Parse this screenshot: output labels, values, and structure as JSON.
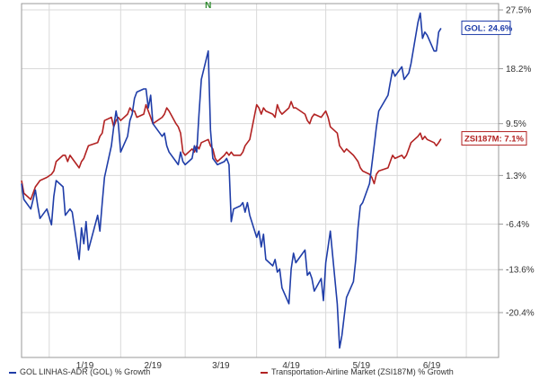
{
  "chart_data": {
    "type": "line",
    "title": "",
    "xlabel": "",
    "ylabel": "",
    "x_tick_labels": [
      "1/19",
      "2/19",
      "3/19",
      "4/19",
      "5/19",
      "6/19"
    ],
    "y_tick_labels": [
      "27.5%",
      "18.2%",
      "9.5%",
      "1.3%",
      "-6.4%",
      "-13.6%",
      "-20.4%"
    ],
    "y_ticks": [
      27.5,
      18.2,
      9.5,
      1.3,
      -6.4,
      -13.6,
      -20.4
    ],
    "ylim": [
      -27.5,
      28.5
    ],
    "grid": true,
    "legend_position": "bottom",
    "top_marker": "N",
    "series": [
      {
        "name": "GOL LINHAS-ADR (GOL) % Growth",
        "color": "#1f3da8",
        "end_label": "GOL: 24.6%",
        "points": [
          [
            "2018-12-20",
            0.0
          ],
          [
            "2018-12-21",
            -2.5
          ],
          [
            "2018-12-24",
            -4.0
          ],
          [
            "2018-12-26",
            -1.0
          ],
          [
            "2018-12-27",
            -3.5
          ],
          [
            "2018-12-28",
            -5.5
          ],
          [
            "2018-12-31",
            -4.0
          ],
          [
            "2019-01-02",
            -6.5
          ],
          [
            "2019-01-03",
            -2.0
          ],
          [
            "2019-01-04",
            0.5
          ],
          [
            "2019-01-07",
            -0.5
          ],
          [
            "2019-01-08",
            -5.0
          ],
          [
            "2019-01-09",
            -4.5
          ],
          [
            "2019-01-10",
            -4.0
          ],
          [
            "2019-01-11",
            -4.5
          ],
          [
            "2019-01-14",
            -12.0
          ],
          [
            "2019-01-15",
            -7.0
          ],
          [
            "2019-01-16",
            -9.5
          ],
          [
            "2019-01-17",
            -6.0
          ],
          [
            "2019-01-18",
            -10.5
          ],
          [
            "2019-01-22",
            -5.0
          ],
          [
            "2019-01-23",
            -7.5
          ],
          [
            "2019-01-24",
            -3.0
          ],
          [
            "2019-01-25",
            1.0
          ],
          [
            "2019-01-28",
            6.0
          ],
          [
            "2019-01-29",
            9.0
          ],
          [
            "2019-01-30",
            11.5
          ],
          [
            "2019-01-31",
            9.5
          ],
          [
            "2019-02-01",
            5.0
          ],
          [
            "2019-02-04",
            7.5
          ],
          [
            "2019-02-05",
            10.0
          ],
          [
            "2019-02-06",
            11.0
          ],
          [
            "2019-02-07",
            13.5
          ],
          [
            "2019-02-08",
            14.5
          ],
          [
            "2019-02-11",
            15.0
          ],
          [
            "2019-02-12",
            15.0
          ],
          [
            "2019-02-13",
            12.0
          ],
          [
            "2019-02-14",
            14.0
          ],
          [
            "2019-02-15",
            9.5
          ],
          [
            "2019-02-19",
            7.5
          ],
          [
            "2019-02-20",
            8.0
          ],
          [
            "2019-02-21",
            6.0
          ],
          [
            "2019-02-22",
            5.0
          ],
          [
            "2019-02-25",
            3.5
          ],
          [
            "2019-02-26",
            3.0
          ],
          [
            "2019-02-27",
            5.0
          ],
          [
            "2019-02-28",
            3.5
          ],
          [
            "2019-03-01",
            3.0
          ],
          [
            "2019-03-04",
            4.0
          ],
          [
            "2019-03-05",
            6.0
          ],
          [
            "2019-03-06",
            5.0
          ],
          [
            "2019-03-07",
            11.0
          ],
          [
            "2019-03-08",
            16.5
          ],
          [
            "2019-03-11",
            21.0
          ],
          [
            "2019-03-12",
            8.5
          ],
          [
            "2019-03-13",
            4.0
          ],
          [
            "2019-03-14",
            3.5
          ],
          [
            "2019-03-15",
            3.0
          ],
          [
            "2019-03-18",
            3.5
          ],
          [
            "2019-03-19",
            4.0
          ],
          [
            "2019-03-20",
            3.0
          ],
          [
            "2019-03-21",
            -6.0
          ],
          [
            "2019-03-22",
            -4.0
          ],
          [
            "2019-03-25",
            -3.5
          ],
          [
            "2019-03-26",
            -3.0
          ],
          [
            "2019-03-27",
            -4.5
          ],
          [
            "2019-03-28",
            -3.0
          ],
          [
            "2019-03-29",
            -5.0
          ],
          [
            "2019-04-01",
            -8.5
          ],
          [
            "2019-04-02",
            -7.5
          ],
          [
            "2019-04-03",
            -10.0
          ],
          [
            "2019-04-04",
            -8.0
          ],
          [
            "2019-04-05",
            -12.0
          ],
          [
            "2019-04-08",
            -13.0
          ],
          [
            "2019-04-09",
            -12.0
          ],
          [
            "2019-04-10",
            -14.0
          ],
          [
            "2019-04-11",
            -13.5
          ],
          [
            "2019-04-12",
            -16.5
          ],
          [
            "2019-04-15",
            -19.0
          ],
          [
            "2019-04-16",
            -13.5
          ],
          [
            "2019-04-17",
            -11.0
          ],
          [
            "2019-04-18",
            -12.5
          ],
          [
            "2019-04-22",
            -10.5
          ],
          [
            "2019-04-23",
            -14.5
          ],
          [
            "2019-04-24",
            -14.0
          ],
          [
            "2019-04-25",
            -15.0
          ],
          [
            "2019-04-26",
            -17.0
          ],
          [
            "2019-04-29",
            -15.0
          ],
          [
            "2019-04-30",
            -18.5
          ],
          [
            "2019-05-01",
            -12.5
          ],
          [
            "2019-05-02",
            -10.0
          ],
          [
            "2019-05-03",
            -7.5
          ],
          [
            "2019-05-06",
            -19.0
          ],
          [
            "2019-05-07",
            -26.0
          ],
          [
            "2019-05-08",
            -24.0
          ],
          [
            "2019-05-09",
            -21.0
          ],
          [
            "2019-05-10",
            -18.0
          ],
          [
            "2019-05-13",
            -15.5
          ],
          [
            "2019-05-14",
            -12.0
          ],
          [
            "2019-05-15",
            -7.0
          ],
          [
            "2019-05-16",
            -3.5
          ],
          [
            "2019-05-17",
            -3.0
          ],
          [
            "2019-05-20",
            0.0
          ],
          [
            "2019-05-21",
            3.0
          ],
          [
            "2019-05-22",
            6.0
          ],
          [
            "2019-05-23",
            9.0
          ],
          [
            "2019-05-24",
            11.5
          ],
          [
            "2019-05-28",
            14.0
          ],
          [
            "2019-05-29",
            16.0
          ],
          [
            "2019-05-30",
            18.0
          ],
          [
            "2019-05-31",
            17.0
          ],
          [
            "2019-06-03",
            18.5
          ],
          [
            "2019-06-04",
            16.5
          ],
          [
            "2019-06-05",
            17.0
          ],
          [
            "2019-06-06",
            17.5
          ],
          [
            "2019-06-07",
            19.0
          ],
          [
            "2019-06-10",
            25.5
          ],
          [
            "2019-06-11",
            27.0
          ],
          [
            "2019-06-12",
            23.0
          ],
          [
            "2019-06-13",
            24.0
          ],
          [
            "2019-06-14",
            23.5
          ],
          [
            "2019-06-17",
            21.0
          ],
          [
            "2019-06-18",
            21.0
          ],
          [
            "2019-06-19",
            24.0
          ],
          [
            "2019-06-20",
            24.6
          ]
        ]
      },
      {
        "name": "Transportation-Airline Market (ZSI187M) % Growth",
        "color": "#b22222",
        "end_label": "ZSI187M: 7.1%",
        "points": [
          [
            "2018-12-20",
            0.5
          ],
          [
            "2018-12-21",
            -1.5
          ],
          [
            "2018-12-24",
            -2.5
          ],
          [
            "2018-12-26",
            -0.5
          ],
          [
            "2018-12-27",
            0.0
          ],
          [
            "2018-12-28",
            0.5
          ],
          [
            "2018-12-31",
            1.0
          ],
          [
            "2019-01-02",
            1.5
          ],
          [
            "2019-01-03",
            2.0
          ],
          [
            "2019-01-04",
            3.5
          ],
          [
            "2019-01-07",
            4.5
          ],
          [
            "2019-01-08",
            4.5
          ],
          [
            "2019-01-09",
            3.5
          ],
          [
            "2019-01-10",
            4.5
          ],
          [
            "2019-01-11",
            4.0
          ],
          [
            "2019-01-14",
            2.5
          ],
          [
            "2019-01-15",
            3.5
          ],
          [
            "2019-01-16",
            4.0
          ],
          [
            "2019-01-17",
            5.0
          ],
          [
            "2019-01-18",
            6.0
          ],
          [
            "2019-01-22",
            6.5
          ],
          [
            "2019-01-23",
            7.5
          ],
          [
            "2019-01-24",
            8.0
          ],
          [
            "2019-01-25",
            10.0
          ],
          [
            "2019-01-28",
            10.5
          ],
          [
            "2019-01-29",
            9.0
          ],
          [
            "2019-01-30",
            10.0
          ],
          [
            "2019-01-31",
            10.5
          ],
          [
            "2019-02-01",
            10.0
          ],
          [
            "2019-02-04",
            11.0
          ],
          [
            "2019-02-05",
            12.0
          ],
          [
            "2019-02-06",
            11.5
          ],
          [
            "2019-02-07",
            11.5
          ],
          [
            "2019-02-08",
            10.5
          ],
          [
            "2019-02-11",
            11.0
          ],
          [
            "2019-02-12",
            12.5
          ],
          [
            "2019-02-13",
            11.5
          ],
          [
            "2019-02-14",
            10.5
          ],
          [
            "2019-02-15",
            9.5
          ],
          [
            "2019-02-19",
            10.5
          ],
          [
            "2019-02-20",
            11.0
          ],
          [
            "2019-02-21",
            12.0
          ],
          [
            "2019-02-22",
            11.5
          ],
          [
            "2019-02-25",
            9.5
          ],
          [
            "2019-02-26",
            9.0
          ],
          [
            "2019-02-27",
            8.0
          ],
          [
            "2019-02-28",
            5.0
          ],
          [
            "2019-03-01",
            4.5
          ],
          [
            "2019-03-04",
            5.5
          ],
          [
            "2019-03-05",
            5.0
          ],
          [
            "2019-03-06",
            6.0
          ],
          [
            "2019-03-07",
            5.5
          ],
          [
            "2019-03-08",
            6.5
          ],
          [
            "2019-03-11",
            7.0
          ],
          [
            "2019-03-12",
            6.0
          ],
          [
            "2019-03-13",
            5.5
          ],
          [
            "2019-03-14",
            4.0
          ],
          [
            "2019-03-15",
            3.5
          ],
          [
            "2019-03-18",
            4.5
          ],
          [
            "2019-03-19",
            5.0
          ],
          [
            "2019-03-20",
            4.5
          ],
          [
            "2019-03-21",
            5.0
          ],
          [
            "2019-03-22",
            4.5
          ],
          [
            "2019-03-25",
            4.5
          ],
          [
            "2019-03-26",
            5.0
          ],
          [
            "2019-03-27",
            6.0
          ],
          [
            "2019-03-28",
            6.5
          ],
          [
            "2019-03-29",
            7.0
          ],
          [
            "2019-04-01",
            12.5
          ],
          [
            "2019-04-02",
            12.0
          ],
          [
            "2019-04-03",
            11.0
          ],
          [
            "2019-04-04",
            12.0
          ],
          [
            "2019-04-05",
            11.5
          ],
          [
            "2019-04-08",
            11.0
          ],
          [
            "2019-04-09",
            10.5
          ],
          [
            "2019-04-10",
            12.5
          ],
          [
            "2019-04-11",
            11.5
          ],
          [
            "2019-04-12",
            11.0
          ],
          [
            "2019-04-15",
            12.0
          ],
          [
            "2019-04-16",
            13.0
          ],
          [
            "2019-04-17",
            12.0
          ],
          [
            "2019-04-18",
            12.0
          ],
          [
            "2019-04-22",
            11.0
          ],
          [
            "2019-04-23",
            10.0
          ],
          [
            "2019-04-24",
            9.5
          ],
          [
            "2019-04-25",
            10.5
          ],
          [
            "2019-04-26",
            11.0
          ],
          [
            "2019-04-29",
            10.5
          ],
          [
            "2019-04-30",
            11.0
          ],
          [
            "2019-05-01",
            11.5
          ],
          [
            "2019-05-02",
            10.5
          ],
          [
            "2019-05-03",
            9.0
          ],
          [
            "2019-05-06",
            8.0
          ],
          [
            "2019-05-07",
            6.0
          ],
          [
            "2019-05-08",
            5.5
          ],
          [
            "2019-05-09",
            5.0
          ],
          [
            "2019-05-10",
            5.5
          ],
          [
            "2019-05-13",
            4.5
          ],
          [
            "2019-05-14",
            4.0
          ],
          [
            "2019-05-15",
            3.5
          ],
          [
            "2019-05-16",
            2.5
          ],
          [
            "2019-05-17",
            2.0
          ],
          [
            "2019-05-20",
            1.5
          ],
          [
            "2019-05-21",
            1.0
          ],
          [
            "2019-05-22",
            0.0
          ],
          [
            "2019-05-23",
            1.5
          ],
          [
            "2019-05-24",
            2.0
          ],
          [
            "2019-05-28",
            2.5
          ],
          [
            "2019-05-29",
            3.5
          ],
          [
            "2019-05-30",
            4.5
          ],
          [
            "2019-05-31",
            4.0
          ],
          [
            "2019-06-03",
            4.5
          ],
          [
            "2019-06-04",
            4.0
          ],
          [
            "2019-06-05",
            4.5
          ],
          [
            "2019-06-06",
            5.5
          ],
          [
            "2019-06-07",
            6.5
          ],
          [
            "2019-06-10",
            7.5
          ],
          [
            "2019-06-11",
            8.0
          ],
          [
            "2019-06-12",
            7.0
          ],
          [
            "2019-06-13",
            7.5
          ],
          [
            "2019-06-14",
            7.0
          ],
          [
            "2019-06-17",
            6.5
          ],
          [
            "2019-06-18",
            6.0
          ],
          [
            "2019-06-19",
            6.5
          ],
          [
            "2019-06-20",
            7.1
          ]
        ]
      }
    ]
  }
}
